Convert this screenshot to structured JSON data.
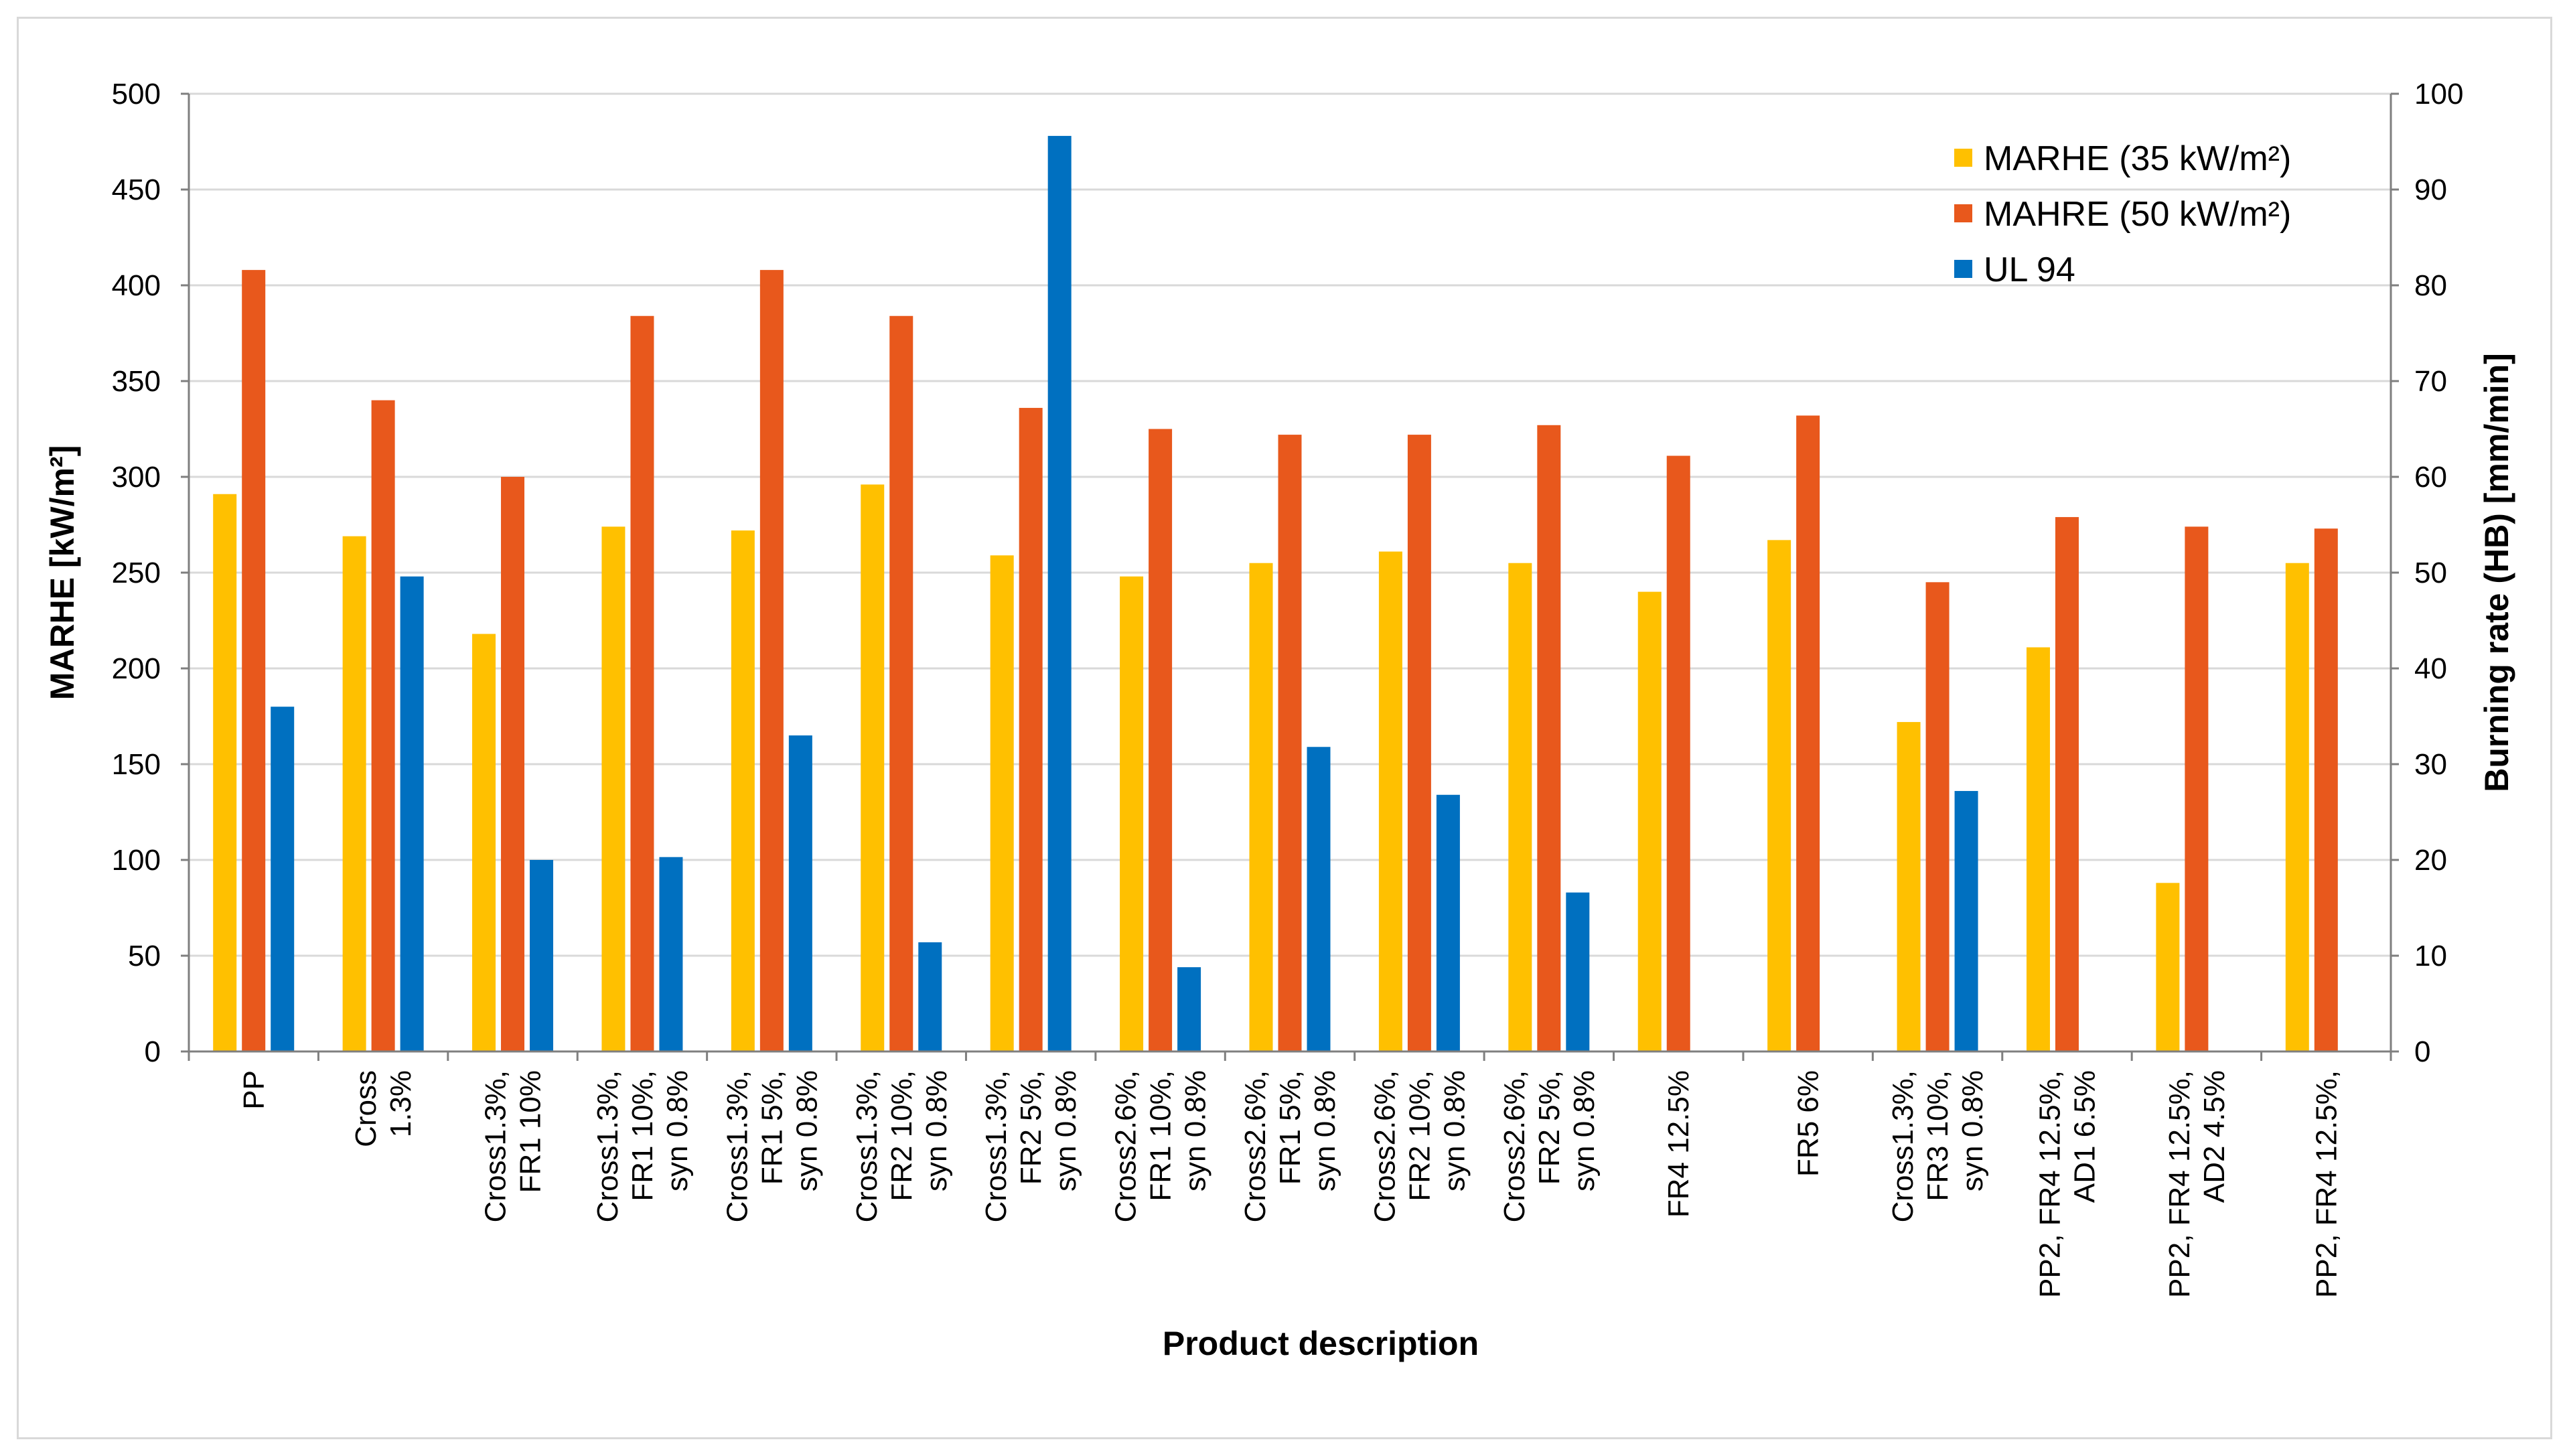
{
  "chart_data": {
    "type": "bar",
    "xlabel": "Product description",
    "ylabel": "MARHE  [kW/m²]",
    "y2label": "Burning rate  (HB) [mm/min]",
    "ylim": [
      0,
      500
    ],
    "y2lim": [
      0,
      100
    ],
    "yticks": [
      "0",
      "50",
      "100",
      "150",
      "200",
      "250",
      "300",
      "350",
      "400",
      "450",
      "500"
    ],
    "y2ticks": [
      "0",
      "10",
      "20",
      "30",
      "40",
      "50",
      "60",
      "70",
      "80",
      "90",
      "100"
    ],
    "grid": true,
    "legend_position": "top-right",
    "categories": [
      [
        "PP"
      ],
      [
        "Cross",
        "1.3%"
      ],
      [
        "Cross1.3%,",
        "FR1 10%"
      ],
      [
        "Cross1.3%,",
        "FR1 10%,",
        "syn 0.8%"
      ],
      [
        "Cross1.3%,",
        "FR1 5%,",
        "syn 0.8%"
      ],
      [
        "Cross1.3%,",
        "FR2 10%,",
        "syn 0.8%"
      ],
      [
        "Cross1.3%,",
        "FR2 5%,",
        "syn 0.8%"
      ],
      [
        "Cross2.6%,",
        "FR1 10%,",
        "syn 0.8%"
      ],
      [
        "Cross2.6%,",
        "FR1 5%,",
        "syn 0.8%"
      ],
      [
        "Cross2.6%,",
        "FR2 10%,",
        "syn 0.8%"
      ],
      [
        "Cross2.6%,",
        "FR2 5%,",
        "syn 0.8%"
      ],
      [
        "FR4 12.5%"
      ],
      [
        "FR5 6%"
      ],
      [
        "Cross1.3%,",
        "FR3 10%,",
        "syn 0.8%"
      ],
      [
        "PP2, FR4 12.5%,",
        "AD1 6.5%"
      ],
      [
        "PP2, FR4 12.5%,",
        "AD2 4.5%"
      ],
      [
        "PP2, FR4 12.5%,"
      ]
    ],
    "series": [
      {
        "name": "MARHE (35 kW/m²)",
        "axis": "left",
        "color": "#FFC000",
        "values": [
          291,
          269,
          218,
          274,
          272,
          296,
          259,
          248,
          255,
          261,
          255,
          240,
          267,
          172,
          211,
          88,
          255
        ]
      },
      {
        "name": "MAHRE (50 kW/m²)",
        "axis": "left",
        "color": "#E8581C",
        "values": [
          408,
          340,
          300,
          384,
          408,
          384,
          336,
          325,
          322,
          322,
          327,
          311,
          332,
          245,
          279,
          274,
          273
        ]
      },
      {
        "name": "UL 94",
        "axis": "right",
        "color": "#0070C0",
        "values": [
          36,
          49.6,
          20,
          20.3,
          33,
          11.4,
          95.6,
          8.8,
          31.8,
          26.8,
          16.6,
          null,
          null,
          27.2,
          null,
          null,
          null
        ]
      }
    ]
  }
}
